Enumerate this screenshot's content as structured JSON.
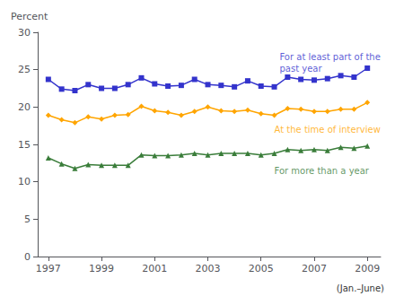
{
  "chart_data": {
    "type": "line",
    "ylabel": "Percent",
    "xlabel": "(Jan.–June)",
    "x": [
      1997,
      1997.5,
      1998,
      1998.5,
      1999,
      1999.5,
      2000,
      2000.5,
      2001,
      2001.5,
      2002,
      2002.5,
      2003,
      2003.5,
      2004,
      2004.5,
      2005,
      2005.5,
      2006,
      2006.5,
      2007,
      2007.5,
      2008,
      2008.5,
      2009
    ],
    "series": [
      {
        "color": "#3333CC",
        "marker": "square",
        "values": [
          23.7,
          22.4,
          22.2,
          23.0,
          22.5,
          22.5,
          23.0,
          23.9,
          23.1,
          22.8,
          22.9,
          23.7,
          23.0,
          22.9,
          22.7,
          23.5,
          22.8,
          22.7,
          24.0,
          23.7,
          23.6,
          23.8,
          24.2,
          24.0,
          25.2
        ]
      },
      {
        "color": "#FFA500",
        "marker": "diamond",
        "values": [
          18.9,
          18.3,
          17.9,
          18.7,
          18.4,
          18.9,
          19.0,
          20.1,
          19.5,
          19.3,
          18.9,
          19.4,
          20.0,
          19.5,
          19.4,
          19.6,
          19.1,
          18.9,
          19.8,
          19.7,
          19.4,
          19.4,
          19.7,
          19.7,
          20.6
        ]
      },
      {
        "color": "#3A7D3A",
        "marker": "triangle",
        "values": [
          13.2,
          12.4,
          11.8,
          12.3,
          12.2,
          12.2,
          12.2,
          13.6,
          13.5,
          13.5,
          13.6,
          13.8,
          13.6,
          13.8,
          13.8,
          13.8,
          13.6,
          13.8,
          14.3,
          14.2,
          14.3,
          14.2,
          14.6,
          14.5,
          14.8
        ]
      }
    ],
    "annotations": [
      {
        "text": "For at least part of the\npast year",
        "x": 2005.7,
        "y": 27.5,
        "color": "#3333CC"
      },
      {
        "text": "At the time of interview",
        "x": 2005.5,
        "y": 17.8,
        "color": "#FFA500"
      },
      {
        "text": "For more than a year",
        "x": 2005.5,
        "y": 12.3,
        "color": "#3A7D3A"
      }
    ],
    "xlim": [
      1996.6,
      2009.5
    ],
    "xticks": [
      1997,
      1999,
      2001,
      2003,
      2005,
      2007,
      2009
    ],
    "ylim": [
      0,
      30
    ],
    "yticks": [
      0,
      5,
      10,
      15,
      20,
      25,
      30
    ],
    "grid": false
  }
}
